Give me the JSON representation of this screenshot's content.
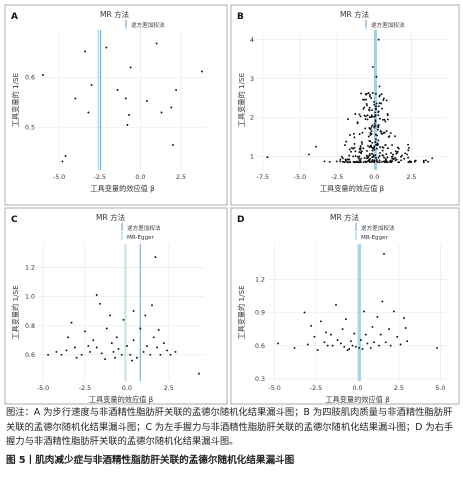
{
  "figure": {
    "caption": "图注：A 为步行速度与非酒精性脂肪肝关联的孟德尔随机化结果漏斗图；B 为四肢肌肉质量与非酒精性脂肪肝关联的孟德尔随机化结果漏斗图；C 为左手握力与非酒精性脂肪肝关联的孟德尔随机化结果漏斗图；D 为右手握力与非酒精性脂肪肝关联的孟德尔随机化结果漏斗图。",
    "title": "图 5丨肌肉减少症与非酒精性脂肪肝关联的孟德尔随机化结果漏斗图"
  },
  "colors": {
    "ivw": "#7fa7cc",
    "egger": "#9fd4ea",
    "point": "#111111",
    "frame": "#9a9a9a",
    "grid": "#e7e7e7"
  },
  "chart_data": [
    {
      "panel": "A",
      "type": "scatter",
      "legend_title": "MR 方法",
      "legend": [
        "逆方差加权法",
        "MR-Egger"
      ],
      "xlabel": "工具变量的效应值 β",
      "ylabel": "工具变量的 1/SE",
      "xlim": [
        -6.3,
        4.1
      ],
      "ylim": [
        0.415,
        0.695
      ],
      "xticks": [
        -5.0,
        -2.5,
        0.0,
        2.5
      ],
      "yticks": [
        0.5,
        0.6
      ],
      "vlines": {
        "ivw": -2.45,
        "egger": -2.6
      },
      "points": [
        [
          -6.0,
          0.605
        ],
        [
          -4.8,
          0.432
        ],
        [
          -4.6,
          0.443
        ],
        [
          -4.0,
          0.558
        ],
        [
          -3.4,
          0.652
        ],
        [
          -3.2,
          0.53
        ],
        [
          -3.0,
          0.585
        ],
        [
          -2.1,
          0.66
        ],
        [
          -1.4,
          0.575
        ],
        [
          -0.9,
          0.558
        ],
        [
          -0.8,
          0.505
        ],
        [
          -0.7,
          0.525
        ],
        [
          -0.6,
          0.62
        ],
        [
          0.4,
          0.553
        ],
        [
          1.0,
          0.668
        ],
        [
          1.3,
          0.53
        ],
        [
          1.9,
          0.54
        ],
        [
          2.2,
          0.575
        ],
        [
          2.0,
          0.465
        ],
        [
          3.8,
          0.612
        ]
      ]
    },
    {
      "panel": "B",
      "type": "scatter",
      "legend_title": "MR 方法",
      "legend": [
        "逆方差加权法",
        "MR-Egger"
      ],
      "xlabel": "工具变量的效应值 β",
      "ylabel": "工具变量的 1/SE",
      "xlim": [
        -7.9,
        4.9
      ],
      "ylim": [
        0.65,
        4.25
      ],
      "xticks": [
        -7.5,
        -5.0,
        -2.5,
        0.0,
        2.5
      ],
      "yticks": [
        1,
        2,
        3,
        4
      ],
      "vlines": {
        "ivw": 0.05,
        "egger": 0.15
      },
      "points": []
    },
    {
      "panel": "C",
      "type": "scatter",
      "legend_title": "MR 方法",
      "legend": [
        "逆方差加权法",
        "MR-Egger"
      ],
      "xlabel": "工具变量的效应值 β",
      "ylabel": "工具变量的 1/SE",
      "xlim": [
        -5.3,
        4.6
      ],
      "ylim": [
        0.42,
        1.36
      ],
      "xticks": [
        -5.0,
        -2.5,
        0.0,
        2.5
      ],
      "yticks": [
        0.6,
        0.8,
        1.0,
        1.2
      ],
      "vlines": {
        "ivw": 0.8,
        "egger": -0.1
      },
      "points": [
        [
          -4.7,
          0.6
        ],
        [
          -4.2,
          0.62
        ],
        [
          -3.9,
          0.6
        ],
        [
          -3.6,
          0.63
        ],
        [
          -3.5,
          0.72
        ],
        [
          -3.3,
          0.82
        ],
        [
          -3.1,
          0.65
        ],
        [
          -3.0,
          0.58
        ],
        [
          -2.7,
          0.6
        ],
        [
          -2.5,
          0.76
        ],
        [
          -2.3,
          0.66
        ],
        [
          -2.2,
          0.62
        ],
        [
          -2.0,
          0.7
        ],
        [
          -1.8,
          0.65
        ],
        [
          -1.8,
          1.01
        ],
        [
          -1.6,
          0.95
        ],
        [
          -1.5,
          0.61
        ],
        [
          -1.3,
          0.57
        ],
        [
          -1.2,
          0.78
        ],
        [
          -1.0,
          0.87
        ],
        [
          -0.9,
          0.68
        ],
        [
          -0.8,
          0.62
        ],
        [
          -0.6,
          0.72
        ],
        [
          -0.5,
          0.64
        ],
        [
          -0.3,
          0.6
        ],
        [
          -0.2,
          0.84
        ],
        [
          0.0,
          0.66
        ],
        [
          0.2,
          0.6
        ],
        [
          0.4,
          0.9
        ],
        [
          0.4,
          0.7
        ],
        [
          0.6,
          0.58
        ],
        [
          0.8,
          0.78
        ],
        [
          1.0,
          0.62
        ],
        [
          1.1,
          0.87
        ],
        [
          1.2,
          0.66
        ],
        [
          1.4,
          0.6
        ],
        [
          1.5,
          0.94
        ],
        [
          1.6,
          0.72
        ],
        [
          1.7,
          1.27
        ],
        [
          1.8,
          0.65
        ],
        [
          2.0,
          0.6
        ],
        [
          2.2,
          0.68
        ],
        [
          2.4,
          0.63
        ],
        [
          2.6,
          0.6
        ],
        [
          4.3,
          0.47
        ],
        [
          0.3,
          0.56
        ],
        [
          -0.7,
          0.58
        ],
        [
          2.9,
          0.62
        ],
        [
          1.9,
          0.77
        ]
      ]
    },
    {
      "panel": "D",
      "type": "scatter",
      "legend_title": "MR 方法",
      "legend": [
        "逆方差加权法",
        "MR-Egger"
      ],
      "xlabel": "工具变量的效应值 β",
      "ylabel": "工具变量的 1/SE",
      "xlim": [
        -5.4,
        5.4
      ],
      "ylim": [
        0.28,
        1.52
      ],
      "xticks": [
        -5.0,
        -2.5,
        0.0,
        2.5,
        5.0
      ],
      "yticks": [
        0.3,
        0.6,
        0.9,
        1.2
      ],
      "vlines": {
        "ivw": 0.15,
        "egger": 0.05
      },
      "points": [
        [
          -4.8,
          0.62
        ],
        [
          -3.8,
          0.58
        ],
        [
          -3.2,
          0.9
        ],
        [
          -3.0,
          0.61
        ],
        [
          -2.8,
          0.78
        ],
        [
          -2.6,
          0.68
        ],
        [
          -2.4,
          0.56
        ],
        [
          -2.2,
          0.82
        ],
        [
          -2.0,
          0.63
        ],
        [
          -1.8,
          0.6
        ],
        [
          -1.6,
          0.7
        ],
        [
          -1.5,
          0.6
        ],
        [
          -1.3,
          0.97
        ],
        [
          -1.2,
          0.65
        ],
        [
          -1.0,
          0.62
        ],
        [
          -0.9,
          0.75
        ],
        [
          -0.8,
          0.59
        ],
        [
          -0.7,
          0.84
        ],
        [
          -0.5,
          0.57
        ],
        [
          -0.4,
          0.64
        ],
        [
          -0.3,
          0.6
        ],
        [
          -0.2,
          0.71
        ],
        [
          -0.1,
          0.59
        ],
        [
          0.1,
          0.58
        ],
        [
          0.2,
          0.65
        ],
        [
          0.3,
          0.57
        ],
        [
          0.4,
          0.91
        ],
        [
          0.5,
          0.7
        ],
        [
          0.6,
          0.62
        ],
        [
          0.8,
          0.58
        ],
        [
          0.9,
          0.77
        ],
        [
          1.0,
          0.63
        ],
        [
          1.2,
          0.86
        ],
        [
          1.3,
          0.6
        ],
        [
          1.4,
          0.7
        ],
        [
          1.5,
          1.0
        ],
        [
          1.6,
          1.43
        ],
        [
          1.7,
          0.63
        ],
        [
          1.9,
          0.75
        ],
        [
          2.0,
          0.6
        ],
        [
          2.2,
          0.91
        ],
        [
          2.4,
          0.68
        ],
        [
          2.6,
          0.61
        ],
        [
          2.8,
          0.85
        ],
        [
          3.0,
          0.64
        ],
        [
          4.8,
          0.58
        ],
        [
          2.9,
          0.76
        ],
        [
          -0.6,
          0.56
        ],
        [
          -1.9,
          0.72
        ]
      ]
    }
  ]
}
